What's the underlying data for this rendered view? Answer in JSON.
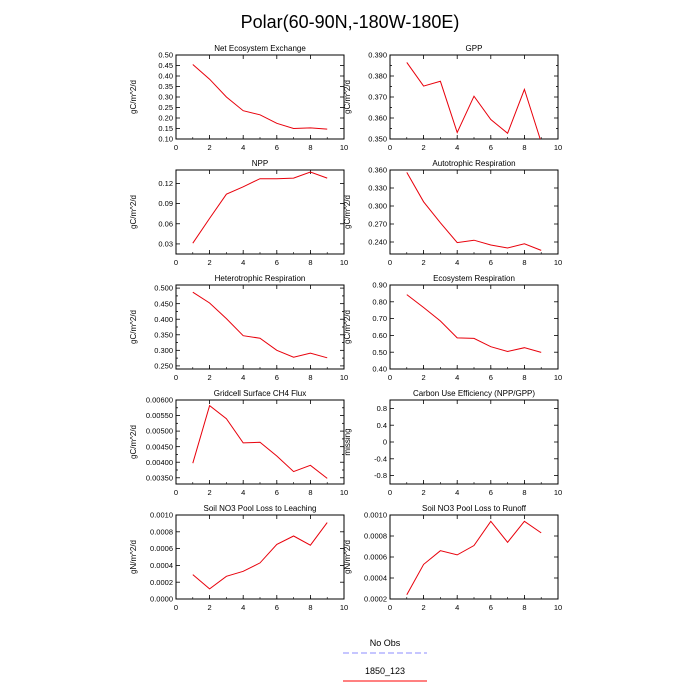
{
  "title": "Polar(60-90N,-180W-180E)",
  "legend": {
    "entries": [
      {
        "label": "No Obs",
        "color": "#8c8cff",
        "dash": true
      },
      {
        "label": "1850_123",
        "color": "#ff0000",
        "dash": false
      }
    ]
  },
  "colors": {
    "series": "#e8000b",
    "axis": "#000000"
  },
  "chart_data": [
    {
      "type": "line",
      "title": "Net Ecosystem Exchange",
      "ylabel": "gC/m^2/d",
      "xlim": [
        0,
        10
      ],
      "ylim": [
        0.1,
        0.5
      ],
      "xticks": [
        0,
        2,
        4,
        6,
        8,
        10
      ],
      "xtick_labels": [
        "0",
        "2",
        "4",
        "6",
        "8",
        "10"
      ],
      "yticks": [
        0.1,
        0.15,
        0.2,
        0.25,
        0.3,
        0.35,
        0.4,
        0.45,
        0.5
      ],
      "ytick_labels": [
        "0.10",
        "0.15",
        "0.20",
        "0.25",
        "0.30",
        "0.35",
        "0.40",
        "0.45",
        "0.50"
      ],
      "x": [
        1,
        2,
        3,
        4,
        5,
        6,
        7,
        8,
        9
      ],
      "y": [
        0.455,
        0.385,
        0.3,
        0.235,
        0.215,
        0.175,
        0.15,
        0.153,
        0.147
      ]
    },
    {
      "type": "line",
      "title": "GPP",
      "ylabel": "gC/m^2/d",
      "xlim": [
        0,
        10
      ],
      "ylim": [
        0.35,
        0.39
      ],
      "xticks": [
        0,
        2,
        4,
        6,
        8,
        10
      ],
      "xtick_labels": [
        "0",
        "2",
        "4",
        "6",
        "8",
        "10"
      ],
      "yticks": [
        0.35,
        0.355,
        0.36,
        0.365,
        0.37,
        0.375,
        0.38,
        0.385,
        0.39
      ],
      "ytick_labels": [
        "0.350",
        "",
        "0.360",
        "",
        "0.370",
        "",
        "0.380",
        "",
        "0.390"
      ],
      "x": [
        1,
        2,
        3,
        4,
        5,
        6,
        7,
        8,
        9
      ],
      "y": [
        0.3865,
        0.3752,
        0.3775,
        0.3531,
        0.3704,
        0.3593,
        0.3527,
        0.3736,
        0.3485
      ]
    },
    {
      "type": "line",
      "title": "NPP",
      "ylabel": "gC/m^2/d",
      "xlim": [
        0,
        10
      ],
      "ylim": [
        0.015,
        0.14
      ],
      "xticks": [
        0,
        2,
        4,
        6,
        8,
        10
      ],
      "xtick_labels": [
        "0",
        "2",
        "4",
        "6",
        "8",
        "10"
      ],
      "yticks": [
        0.03,
        0.06,
        0.09,
        0.12
      ],
      "ytick_labels": [
        "0.03",
        "0.06",
        "0.09",
        "0.12"
      ],
      "x": [
        1,
        2,
        3,
        4,
        5,
        6,
        7,
        8,
        9
      ],
      "y": [
        0.031,
        0.068,
        0.104,
        0.115,
        0.127,
        0.127,
        0.128,
        0.137,
        0.128
      ]
    },
    {
      "type": "line",
      "title": "Autotrophic Respiration",
      "ylabel": "gC/m^2/d",
      "xlim": [
        0,
        10
      ],
      "ylim": [
        0.22,
        0.36
      ],
      "xticks": [
        0,
        2,
        4,
        6,
        8,
        10
      ],
      "xtick_labels": [
        "0",
        "2",
        "4",
        "6",
        "8",
        "10"
      ],
      "yticks": [
        0.24,
        0.27,
        0.3,
        0.33,
        0.36
      ],
      "ytick_labels": [
        "0.240",
        "0.270",
        "0.300",
        "0.330",
        "0.360"
      ],
      "x": [
        1,
        2,
        3,
        4,
        5,
        6,
        7,
        8,
        9
      ],
      "y": [
        0.356,
        0.307,
        0.272,
        0.239,
        0.243,
        0.235,
        0.23,
        0.237,
        0.226
      ]
    },
    {
      "type": "line",
      "title": "Heterotrophic Respiration",
      "ylabel": "gC/m^2/d",
      "xlim": [
        0,
        10
      ],
      "ylim": [
        0.24,
        0.51
      ],
      "xticks": [
        0,
        2,
        4,
        6,
        8,
        10
      ],
      "xtick_labels": [
        "0",
        "2",
        "4",
        "6",
        "8",
        "10"
      ],
      "yticks": [
        0.25,
        0.275,
        0.3,
        0.325,
        0.35,
        0.375,
        0.4,
        0.425,
        0.45,
        0.475,
        0.5
      ],
      "ytick_labels": [
        "0.250",
        "",
        "0.300",
        "",
        "0.350",
        "",
        "0.400",
        "",
        "0.450",
        "",
        "0.500"
      ],
      "x": [
        1,
        2,
        3,
        4,
        5,
        6,
        7,
        8,
        9
      ],
      "y": [
        0.487,
        0.452,
        0.402,
        0.347,
        0.339,
        0.3,
        0.278,
        0.291,
        0.276
      ]
    },
    {
      "type": "line",
      "title": "Ecosystem Respiration",
      "ylabel": "gC/m^2/d",
      "xlim": [
        0,
        10
      ],
      "ylim": [
        0.4,
        0.9
      ],
      "xticks": [
        0,
        2,
        4,
        6,
        8,
        10
      ],
      "xtick_labels": [
        "0",
        "2",
        "4",
        "6",
        "8",
        "10"
      ],
      "yticks": [
        0.4,
        0.5,
        0.6,
        0.7,
        0.8,
        0.9
      ],
      "ytick_labels": [
        "0.40",
        "0.50",
        "0.60",
        "0.70",
        "0.80",
        "0.90"
      ],
      "x": [
        1,
        2,
        3,
        4,
        5,
        6,
        7,
        8,
        9
      ],
      "y": [
        0.843,
        0.766,
        0.686,
        0.585,
        0.582,
        0.533,
        0.504,
        0.527,
        0.499
      ]
    },
    {
      "type": "line",
      "title": "Gridcell Surface CH4 Flux",
      "ylabel": "gC/m^2/d",
      "xlim": [
        0,
        10
      ],
      "ylim": [
        0.0033,
        0.006
      ],
      "xticks": [
        0,
        2,
        4,
        6,
        8,
        10
      ],
      "xtick_labels": [
        "0",
        "2",
        "4",
        "6",
        "8",
        "10"
      ],
      "yticks": [
        0.0035,
        0.00375,
        0.004,
        0.00425,
        0.0045,
        0.00475,
        0.005,
        0.00525,
        0.0055,
        0.00575,
        0.006
      ],
      "ytick_labels": [
        "0.00350",
        "",
        "0.00400",
        "",
        "0.00450",
        "",
        "0.00500",
        "",
        "0.00550",
        "",
        "0.00600"
      ],
      "x": [
        1,
        2,
        3,
        4,
        5,
        6,
        7,
        8,
        9
      ],
      "y": [
        0.00397,
        0.00582,
        0.0054,
        0.00462,
        0.00464,
        0.0042,
        0.0037,
        0.0039,
        0.00348
      ]
    },
    {
      "type": "line",
      "title": "Carbon Use Efficiency (NPP/GPP)",
      "ylabel": "missing",
      "xlim": [
        0,
        10
      ],
      "ylim": [
        -1.0,
        1.0
      ],
      "xticks": [
        0,
        2,
        4,
        6,
        8,
        10
      ],
      "xtick_labels": [
        "0",
        "2",
        "4",
        "6",
        "8",
        "10"
      ],
      "yticks": [
        -0.8,
        -0.4,
        0.0,
        0.4,
        0.8
      ],
      "ytick_labels": [
        "-0.8",
        "-0.4",
        "0",
        "0.4",
        "0.8"
      ],
      "x": [],
      "y": []
    },
    {
      "type": "line",
      "title": "Soil NO3 Pool Loss to Leaching",
      "ylabel": "gN/m^2/d",
      "xlim": [
        0,
        10
      ],
      "ylim": [
        0.0,
        0.001
      ],
      "xticks": [
        0,
        2,
        4,
        6,
        8,
        10
      ],
      "xtick_labels": [
        "0",
        "2",
        "4",
        "6",
        "8",
        "10"
      ],
      "yticks": [
        0.0,
        0.0002,
        0.0004,
        0.0006,
        0.0008,
        0.001
      ],
      "ytick_labels": [
        "0.0000",
        "0.0002",
        "0.0004",
        "0.0006",
        "0.0008",
        "0.0010"
      ],
      "x": [
        1,
        2,
        3,
        4,
        5,
        6,
        7,
        8,
        9
      ],
      "y": [
        0.00029,
        0.00012,
        0.00027,
        0.00033,
        0.00043,
        0.00065,
        0.00075,
        0.00064,
        0.00091
      ]
    },
    {
      "type": "line",
      "title": "Soil NO3 Pool Loss to Runoff",
      "ylabel": "gN/m^2/d",
      "xlim": [
        0,
        10
      ],
      "ylim": [
        0.0002,
        0.001
      ],
      "xticks": [
        0,
        2,
        4,
        6,
        8,
        10
      ],
      "xtick_labels": [
        "0",
        "2",
        "4",
        "6",
        "8",
        "10"
      ],
      "yticks": [
        0.0002,
        0.0004,
        0.0006,
        0.0008,
        0.001
      ],
      "ytick_labels": [
        "0.0002",
        "0.0004",
        "0.0006",
        "0.0008",
        "0.0010"
      ],
      "x": [
        1,
        2,
        3,
        4,
        5,
        6,
        7,
        8,
        9
      ],
      "y": [
        0.00024,
        0.00053,
        0.00066,
        0.00062,
        0.00071,
        0.00094,
        0.00074,
        0.00094,
        0.00083
      ]
    }
  ]
}
